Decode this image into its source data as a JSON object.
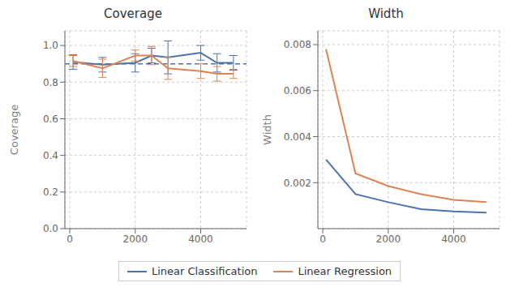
{
  "chart_data": [
    {
      "type": "line",
      "title": "Coverage",
      "ylabel": "Coverage",
      "x": [
        100,
        1000,
        2000,
        2500,
        3000,
        4000,
        4500,
        5000
      ],
      "series": [
        {
          "name": "Linear Classification",
          "color": "#4c72b0",
          "values": [
            0.91,
            0.895,
            0.905,
            0.945,
            0.935,
            0.96,
            0.905,
            0.905
          ],
          "yerr": [
            0.04,
            0.04,
            0.05,
            0.04,
            0.09,
            0.04,
            0.05,
            0.04
          ]
        },
        {
          "name": "Linear Regression",
          "color": "#dd8452",
          "values": [
            0.915,
            0.875,
            0.945,
            0.945,
            0.875,
            0.86,
            0.845,
            0.845
          ],
          "yerr": [
            0.03,
            0.05,
            0.03,
            0.05,
            0.06,
            0.04,
            0.04,
            0.025
          ]
        }
      ],
      "hline": {
        "value": 0.9,
        "color": "#4c72b0",
        "line_style": "dashed"
      },
      "xlim": [
        -150,
        5400
      ],
      "ylim": [
        0.0,
        1.08
      ],
      "xticks": [
        0,
        2000,
        4000
      ],
      "yticks": [
        {
          "value": 0,
          "label": "0.0"
        },
        0.2,
        0.4,
        0.6,
        0.8,
        {
          "value": 1,
          "label": "1.0"
        }
      ],
      "grid": true,
      "legend": "bottom"
    },
    {
      "type": "line",
      "title": "Width",
      "ylabel": "Width",
      "x": [
        100,
        1000,
        2000,
        3000,
        4000,
        5000
      ],
      "series": [
        {
          "name": "Linear Classification",
          "color": "#4c72b0",
          "values": [
            0.003,
            0.0015,
            0.00115,
            0.00085,
            0.00075,
            0.0007
          ]
        },
        {
          "name": "Linear Regression",
          "color": "#dd8452",
          "values": [
            0.0078,
            0.0024,
            0.00185,
            0.0015,
            0.00125,
            0.00115
          ]
        }
      ],
      "xlim": [
        -150,
        5400
      ],
      "ylim": [
        0.0,
        0.0086
      ],
      "xticks": [
        0,
        2000,
        4000
      ],
      "yticks": [
        0.002,
        0.004,
        0.006,
        0.008
      ],
      "grid": true,
      "legend": "bottom"
    }
  ]
}
